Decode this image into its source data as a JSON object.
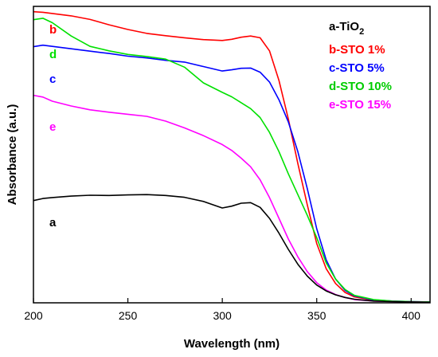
{
  "chart_data": {
    "type": "line",
    "xlabel": "Wavelength (nm)",
    "ylabel": "Absorbance (a.u.)",
    "xlim": [
      200,
      410
    ],
    "ylim": [
      0,
      100
    ],
    "xticks": [
      200,
      250,
      300,
      350,
      400
    ],
    "yticks_shown": false,
    "grid": false,
    "legend_placement": "top-right",
    "legend_title": "a-TiO",
    "legend_title_subscript": "2",
    "series": [
      {
        "name": "b-STO 1%",
        "label": "b",
        "color": "#ff0000",
        "x": [
          200,
          205,
          210,
          220,
          230,
          240,
          250,
          260,
          270,
          280,
          290,
          300,
          305,
          310,
          315,
          320,
          325,
          330,
          335,
          340,
          345,
          350,
          355,
          360,
          365,
          370,
          380,
          390,
          400,
          410
        ],
        "y": [
          98.2,
          98.0,
          97.6,
          96.8,
          95.6,
          93.8,
          92.2,
          90.9,
          90.1,
          89.4,
          88.8,
          88.5,
          88.9,
          89.6,
          90.0,
          89.4,
          85.0,
          75.0,
          62.0,
          47.0,
          33.0,
          20.0,
          11.5,
          6.5,
          3.5,
          2.0,
          0.9,
          0.5,
          0.3,
          0.2
        ]
      },
      {
        "name": "c-STO 5%",
        "label": "c",
        "color": "#0000ff",
        "x": [
          200,
          205,
          210,
          220,
          230,
          240,
          250,
          260,
          270,
          280,
          290,
          300,
          305,
          310,
          315,
          320,
          325,
          330,
          335,
          340,
          345,
          350,
          355,
          360,
          365,
          370,
          380,
          390,
          400,
          410
        ],
        "y": [
          86.4,
          86.9,
          86.5,
          85.7,
          84.9,
          84.1,
          83.2,
          82.6,
          81.8,
          81.2,
          79.7,
          78.2,
          78.6,
          79.1,
          79.2,
          77.8,
          74.5,
          68.5,
          61.0,
          51.0,
          38.5,
          25.0,
          14.5,
          8.0,
          4.2,
          2.3,
          1.0,
          0.6,
          0.4,
          0.3
        ]
      },
      {
        "name": "d-STO 10%",
        "label": "d",
        "color": "#00e000",
        "x": [
          200,
          205,
          210,
          220,
          230,
          240,
          250,
          260,
          270,
          280,
          290,
          300,
          305,
          310,
          315,
          320,
          325,
          330,
          335,
          340,
          345,
          350,
          355,
          360,
          365,
          370,
          380,
          390,
          400,
          410
        ],
        "y": [
          95.5,
          96.0,
          94.5,
          90.0,
          86.5,
          85.0,
          83.8,
          83.1,
          82.2,
          79.5,
          74.2,
          71.0,
          69.5,
          67.5,
          65.5,
          62.5,
          57.5,
          51.0,
          43.5,
          36.5,
          29.5,
          22.0,
          13.5,
          8.0,
          4.5,
          2.5,
          1.1,
          0.6,
          0.4,
          0.3
        ]
      },
      {
        "name": "e-STO 15%",
        "label": "e",
        "color": "#ff00ff",
        "x": [
          200,
          205,
          210,
          220,
          230,
          240,
          250,
          260,
          270,
          280,
          290,
          300,
          305,
          310,
          315,
          320,
          325,
          330,
          335,
          340,
          345,
          350,
          355,
          360,
          365,
          370,
          380,
          390,
          400,
          410
        ],
        "y": [
          70.0,
          69.4,
          68.0,
          66.4,
          65.1,
          64.3,
          63.6,
          62.9,
          61.3,
          59.0,
          56.4,
          53.4,
          51.4,
          48.8,
          45.9,
          41.5,
          35.5,
          28.5,
          21.5,
          15.5,
          10.5,
          6.8,
          4.3,
          2.8,
          1.8,
          1.1,
          0.6,
          0.4,
          0.3,
          0.2
        ]
      },
      {
        "name": "a-TiO2",
        "label": "a",
        "color": "#000000",
        "x": [
          200,
          205,
          210,
          220,
          230,
          240,
          250,
          260,
          270,
          280,
          290,
          300,
          305,
          310,
          315,
          320,
          325,
          330,
          335,
          340,
          345,
          350,
          355,
          360,
          365,
          370,
          380,
          390,
          400,
          410
        ],
        "y": [
          34.5,
          35.2,
          35.5,
          36.0,
          36.3,
          36.2,
          36.4,
          36.5,
          36.2,
          35.6,
          34.2,
          32.0,
          32.6,
          33.6,
          33.8,
          32.2,
          28.5,
          23.5,
          18.0,
          13.0,
          9.0,
          6.0,
          4.0,
          2.7,
          1.8,
          1.2,
          0.6,
          0.4,
          0.3,
          0.2
        ]
      }
    ],
    "legend": [
      {
        "text": "b-STO 1%",
        "color": "#ff0000"
      },
      {
        "text": "c-STO 5%",
        "color": "#0000ff"
      },
      {
        "text": "d-STO 10%",
        "color": "#00cc00"
      },
      {
        "text": "e-STO 15%",
        "color": "#ff00ff"
      }
    ]
  }
}
